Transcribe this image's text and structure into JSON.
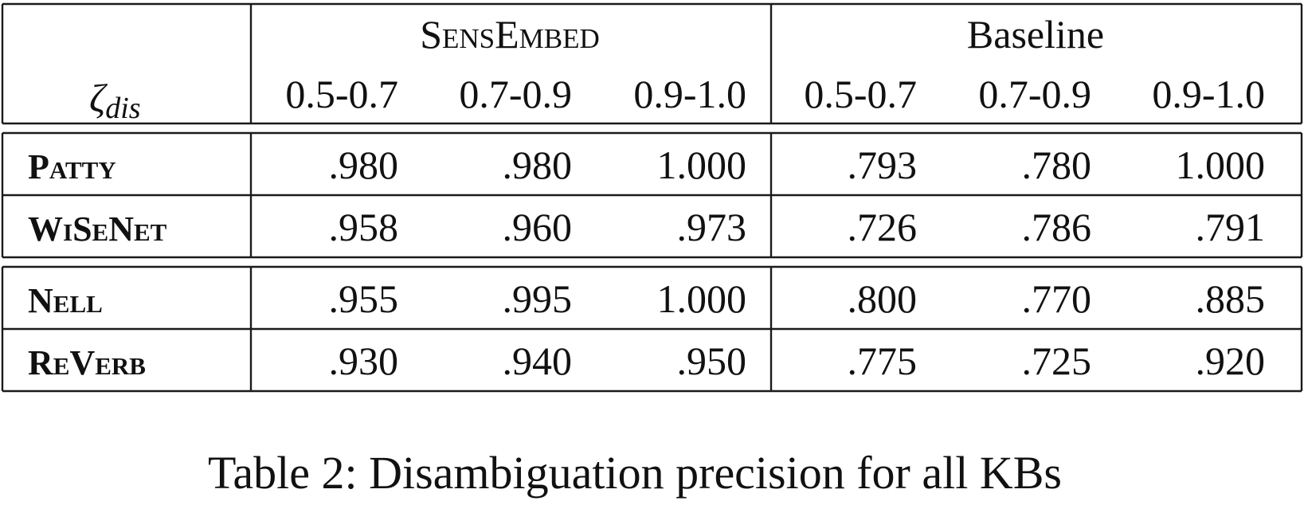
{
  "table": {
    "zeta_symbol": "ζ",
    "zeta_subscript": "dis",
    "groups": [
      "SensEmbed",
      "Baseline"
    ],
    "ranges": [
      "0.5-0.7",
      "0.7-0.9",
      "0.9-1.0",
      "0.5-0.7",
      "0.7-0.9",
      "0.9-1.0"
    ],
    "rows": [
      {
        "kb": "Patty",
        "values": [
          ".980",
          ".980",
          "1.000",
          ".793",
          ".780",
          "1.000"
        ]
      },
      {
        "kb": "WiSeNet",
        "values": [
          ".958",
          ".960",
          ".973",
          ".726",
          ".786",
          ".791"
        ]
      },
      {
        "kb": "Nell",
        "values": [
          ".955",
          ".995",
          "1.000",
          ".800",
          ".770",
          ".885"
        ]
      },
      {
        "kb": "ReVerb",
        "values": [
          ".930",
          ".940",
          ".950",
          ".775",
          ".725",
          ".920"
        ]
      }
    ]
  },
  "caption": "Table 2: Disambiguation precision for all KBs"
}
